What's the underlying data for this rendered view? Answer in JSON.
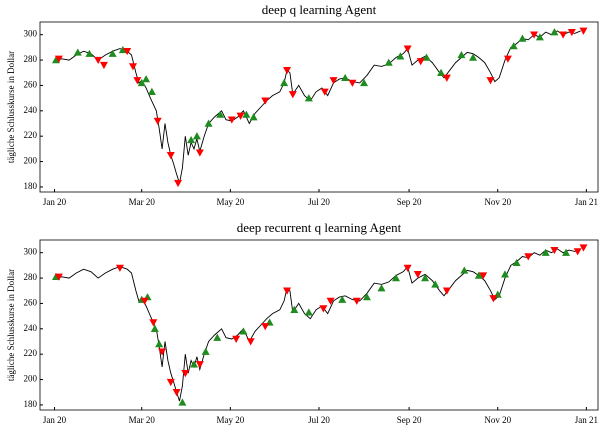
{
  "chart_data": [
    {
      "type": "line",
      "title": "deep q learning Agent",
      "ylabel": "tägliche Schlusskurse in Dollar",
      "color": "#000000",
      "x": [
        0,
        5,
        10,
        15,
        20,
        25,
        30,
        35,
        40,
        45,
        50,
        53,
        56,
        58,
        60,
        63,
        66,
        70,
        72,
        74,
        76,
        78,
        80,
        82,
        84,
        86,
        88,
        90,
        92,
        94,
        96,
        98,
        100,
        103,
        106,
        110,
        115,
        118,
        122,
        126,
        130,
        134,
        138,
        142,
        146,
        150,
        155,
        158,
        160,
        162,
        164,
        168,
        172,
        176,
        180,
        184,
        188,
        192,
        196,
        200,
        205,
        210,
        215,
        220,
        225,
        230,
        235,
        240,
        243,
        246,
        250,
        255,
        260,
        265,
        268,
        272,
        276,
        280,
        284,
        288,
        292,
        296,
        300,
        303,
        306,
        310,
        314,
        318,
        322,
        326,
        330,
        334,
        338,
        342,
        346,
        350,
        354,
        358,
        362
      ],
      "values": [
        280,
        281,
        280,
        284,
        287,
        285,
        280,
        284,
        287,
        289,
        287,
        284,
        270,
        262,
        264,
        258,
        250,
        240,
        226,
        210,
        230,
        215,
        205,
        198,
        190,
        183,
        195,
        220,
        205,
        215,
        210,
        218,
        208,
        220,
        230,
        235,
        240,
        233,
        232,
        235,
        240,
        230,
        238,
        243,
        248,
        252,
        255,
        262,
        272,
        270,
        253,
        260,
        252,
        248,
        255,
        258,
        252,
        262,
        265,
        266,
        263,
        262,
        268,
        276,
        275,
        277,
        282,
        285,
        289,
        276,
        280,
        283,
        278,
        270,
        266,
        272,
        278,
        282,
        286,
        285,
        282,
        278,
        270,
        263,
        266,
        280,
        290,
        293,
        297,
        296,
        300,
        298,
        302,
        300,
        303,
        300,
        302,
        301,
        303
      ],
      "markers": [
        {
          "marker": "up",
          "color": "#1e8c1e",
          "x": [
            1,
            16,
            24,
            40,
            47,
            60,
            63,
            67,
            94,
            98,
            106,
            114,
            132,
            137,
            158,
            175,
            200,
            213,
            230,
            238,
            256,
            266,
            280,
            288,
            316,
            322,
            334,
            344
          ],
          "values": [
            280,
            286,
            285,
            285,
            288,
            262,
            265,
            255,
            217,
            220,
            230,
            237,
            237,
            235,
            262,
            250,
            266,
            262,
            278,
            283,
            282,
            270,
            284,
            282,
            291,
            297,
            298,
            302
          ]
        },
        {
          "marker": "down",
          "color": "#ff0000",
          "x": [
            3,
            30,
            34,
            50,
            54,
            57,
            71,
            80,
            85,
            100,
            122,
            128,
            145,
            160,
            164,
            186,
            192,
            205,
            243,
            252,
            270,
            300,
            312,
            330,
            350,
            356,
            364
          ],
          "values": [
            281,
            280,
            276,
            287,
            275,
            264,
            232,
            205,
            183,
            207,
            233,
            236,
            248,
            272,
            253,
            255,
            264,
            262,
            289,
            279,
            266,
            264,
            281,
            300,
            300,
            302,
            303
          ]
        }
      ],
      "xlim": [
        -10,
        374
      ],
      "ylim": [
        176,
        310
      ],
      "xticks": [
        {
          "value": 0,
          "label": "Jan 20"
        },
        {
          "value": 60,
          "label": "Mar 20"
        },
        {
          "value": 121,
          "label": "May 20"
        },
        {
          "value": 182,
          "label": "Jul 20"
        },
        {
          "value": 244,
          "label": "Sep 20"
        },
        {
          "value": 305,
          "label": "Nov 20"
        },
        {
          "value": 366,
          "label": "Jan 21"
        }
      ],
      "yticks": [
        180,
        200,
        220,
        240,
        260,
        280,
        300
      ]
    },
    {
      "type": "line",
      "title": "deep recurrent q learning Agent",
      "ylabel": "tägliche Schlusskurse in Dollar",
      "color": "#000000",
      "x": [
        0,
        5,
        10,
        15,
        20,
        25,
        30,
        35,
        40,
        45,
        50,
        53,
        56,
        58,
        60,
        63,
        66,
        70,
        72,
        74,
        76,
        78,
        80,
        82,
        84,
        86,
        88,
        90,
        92,
        94,
        96,
        98,
        100,
        103,
        106,
        110,
        115,
        118,
        122,
        126,
        130,
        134,
        138,
        142,
        146,
        150,
        155,
        158,
        160,
        162,
        164,
        168,
        172,
        176,
        180,
        184,
        188,
        192,
        196,
        200,
        205,
        210,
        215,
        220,
        225,
        230,
        235,
        240,
        243,
        246,
        250,
        255,
        260,
        265,
        268,
        272,
        276,
        280,
        284,
        288,
        292,
        296,
        300,
        303,
        306,
        310,
        314,
        318,
        322,
        326,
        330,
        334,
        338,
        342,
        346,
        350,
        354,
        358,
        362
      ],
      "values": [
        280,
        281,
        280,
        284,
        287,
        285,
        280,
        284,
        287,
        289,
        287,
        284,
        270,
        262,
        264,
        258,
        250,
        240,
        226,
        210,
        230,
        215,
        205,
        198,
        190,
        183,
        195,
        220,
        205,
        215,
        210,
        218,
        208,
        220,
        230,
        235,
        240,
        233,
        232,
        235,
        240,
        230,
        238,
        243,
        248,
        252,
        255,
        262,
        272,
        270,
        253,
        260,
        252,
        248,
        255,
        258,
        252,
        262,
        265,
        266,
        263,
        262,
        268,
        276,
        275,
        277,
        282,
        285,
        289,
        276,
        280,
        283,
        278,
        270,
        266,
        272,
        278,
        282,
        286,
        285,
        282,
        278,
        270,
        263,
        266,
        280,
        290,
        293,
        297,
        296,
        300,
        298,
        302,
        300,
        303,
        300,
        302,
        301,
        303
      ],
      "markers": [
        {
          "marker": "up",
          "color": "#1e8c1e",
          "x": [
            1,
            60,
            64,
            69,
            72,
            88,
            96,
            104,
            112,
            130,
            148,
            165,
            175,
            198,
            215,
            225,
            235,
            255,
            262,
            282,
            292,
            305,
            310,
            318,
            338,
            352
          ],
          "values": [
            281,
            263,
            265,
            240,
            228,
            182,
            212,
            222,
            233,
            238,
            245,
            255,
            253,
            263,
            265,
            272,
            280,
            280,
            275,
            286,
            282,
            267,
            283,
            292,
            300,
            300
          ]
        },
        {
          "marker": "down",
          "color": "#ff0000",
          "x": [
            3,
            45,
            62,
            68,
            74,
            80,
            84,
            90,
            100,
            125,
            135,
            145,
            160,
            185,
            190,
            208,
            243,
            250,
            270,
            295,
            302,
            326,
            344,
            360,
            364
          ],
          "values": [
            281,
            288,
            262,
            245,
            222,
            198,
            190,
            205,
            212,
            232,
            230,
            242,
            270,
            256,
            262,
            262,
            288,
            283,
            270,
            282,
            264,
            297,
            302,
            301,
            304
          ]
        }
      ],
      "xlim": [
        -10,
        374
      ],
      "ylim": [
        176,
        310
      ],
      "xticks": [
        {
          "value": 0,
          "label": "Jan 20"
        },
        {
          "value": 60,
          "label": "Mar 20"
        },
        {
          "value": 121,
          "label": "May 20"
        },
        {
          "value": 182,
          "label": "Jul 20"
        },
        {
          "value": 244,
          "label": "Sep 20"
        },
        {
          "value": 305,
          "label": "Nov 20"
        },
        {
          "value": 366,
          "label": "Jan 21"
        }
      ],
      "yticks": [
        180,
        200,
        220,
        240,
        260,
        280,
        300
      ]
    }
  ]
}
